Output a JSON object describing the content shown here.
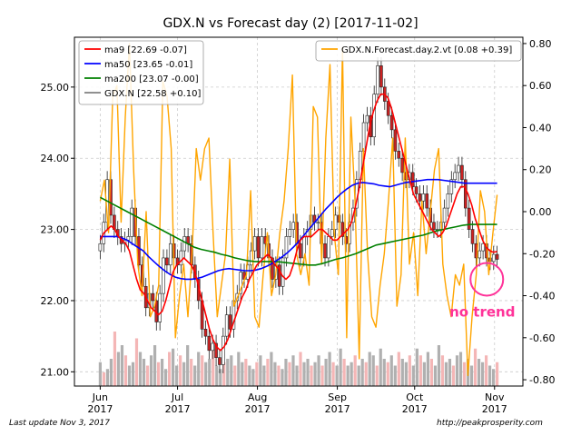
{
  "chart_data": {
    "type": "candlestick",
    "title": "GDX.N vs Forecast day (2)  [2017-11-02]",
    "x_ticks": [
      {
        "date": "2017-06-01",
        "label": "Jun\n2017"
      },
      {
        "date": "2017-07-01",
        "label": "Jul\n2017"
      },
      {
        "date": "2017-08-01",
        "label": "Aug\n2017"
      },
      {
        "date": "2017-09-01",
        "label": "Sep\n2017"
      },
      {
        "date": "2017-10-01",
        "label": "Oct\n2017"
      },
      {
        "date": "2017-11-01",
        "label": "Nov\n2017"
      }
    ],
    "x_range": [
      "2017-05-22",
      "2017-11-12"
    ],
    "left_axis": {
      "range": [
        20.8,
        25.7
      ],
      "ticks": [
        21.0,
        22.0,
        23.0,
        24.0,
        25.0
      ],
      "labels": [
        "21.00",
        "22.00",
        "23.00",
        "24.00",
        "25.00"
      ]
    },
    "right_axis": {
      "range": [
        -0.83,
        0.83
      ],
      "ticks": [
        -0.8,
        -0.6,
        -0.4,
        -0.2,
        0.0,
        0.2,
        0.4,
        0.6,
        0.8
      ],
      "labels": [
        "-0.80",
        "-0.60",
        "-0.40",
        "-0.20",
        "0.00",
        "0.20",
        "0.40",
        "0.60",
        "0.80"
      ]
    },
    "legend_left": [
      {
        "name": "ma9 [22.69 -0.07]",
        "color": "#ff0000"
      },
      {
        "name": "ma50 [23.65 -0.01]",
        "color": "#0000ff"
      },
      {
        "name": "ma200 [23.07 -0.00]",
        "color": "#008000"
      },
      {
        "name": "GDX.N [22.58 +0.10]",
        "color": "#808080"
      }
    ],
    "legend_right": [
      {
        "name": "GDX.N.Forecast.day.2.vt [0.08 +0.39]",
        "color": "#ffa500"
      }
    ],
    "annotation": {
      "text": "no trend",
      "color": "#ff3399"
    },
    "colors": {
      "ma9": "#ff0000",
      "ma50": "#0000ff",
      "ma200": "#008000",
      "forecast": "#ffa500",
      "up_vol": "#b0b0b0",
      "down_vol": "#f4b6b6",
      "down_candle": "#cc2222",
      "up_candle": "#ffffff",
      "grid": "#cccccc",
      "annotation": "#ff3399"
    },
    "price_close": [
      22.8,
      23.1,
      23.7,
      23.2,
      23.0,
      22.9,
      22.8,
      22.85,
      22.9,
      23.3,
      22.9,
      22.5,
      22.2,
      21.9,
      22.1,
      22.0,
      21.7,
      22.1,
      22.6,
      22.5,
      22.8,
      22.6,
      22.5,
      22.7,
      22.9,
      22.8,
      22.5,
      22.3,
      22.0,
      21.6,
      21.5,
      21.3,
      21.4,
      21.2,
      21.1,
      21.5,
      21.8,
      21.6,
      22.0,
      22.1,
      22.4,
      22.3,
      22.5,
      22.7,
      22.9,
      22.6,
      22.9,
      22.8,
      22.6,
      22.3,
      22.5,
      22.2,
      22.6,
      22.9,
      23.0,
      23.1,
      22.8,
      22.6,
      22.9,
      23.0,
      23.2,
      23.1,
      23.1,
      22.8,
      22.6,
      22.9,
      23.0,
      23.2,
      23.1,
      22.9,
      22.8,
      23.1,
      23.3,
      23.7,
      24.1,
      24.5,
      24.6,
      24.3,
      24.9,
      25.3,
      25.0,
      24.8,
      24.6,
      24.4,
      24.1,
      24.0,
      23.8,
      23.7,
      23.8,
      23.6,
      23.5,
      23.4,
      23.5,
      23.3,
      23.1,
      23.0,
      23.0,
      23.1,
      23.3,
      23.5,
      23.7,
      23.8,
      23.9,
      23.7,
      23.3,
      23.0,
      22.8,
      22.6,
      22.7,
      22.8,
      22.6,
      22.55,
      22.65,
      22.58
    ],
    "ma9": [
      22.85,
      22.95,
      23.0,
      23.05,
      23.0,
      22.9,
      22.85,
      22.8,
      22.7,
      22.5,
      22.3,
      22.15,
      22.1,
      22.0,
      21.9,
      21.85,
      21.8,
      21.85,
      22.0,
      22.2,
      22.4,
      22.5,
      22.55,
      22.6,
      22.55,
      22.5,
      22.4,
      22.2,
      22.0,
      21.8,
      21.6,
      21.45,
      21.35,
      21.3,
      21.35,
      21.45,
      21.6,
      21.75,
      21.9,
      22.05,
      22.15,
      22.3,
      22.4,
      22.5,
      22.55,
      22.6,
      22.65,
      22.6,
      22.5,
      22.45,
      22.35,
      22.3,
      22.35,
      22.5,
      22.7,
      22.85,
      22.9,
      22.9,
      22.9,
      22.95,
      23.0,
      23.0,
      22.95,
      22.9,
      22.85,
      22.85,
      22.9,
      22.95,
      23.0,
      23.1,
      23.3,
      23.55,
      23.85,
      24.15,
      24.45,
      24.65,
      24.8,
      24.9,
      24.9,
      24.85,
      24.7,
      24.5,
      24.3,
      24.1,
      23.9,
      23.7,
      23.5,
      23.4,
      23.3,
      23.2,
      23.1,
      23.0,
      22.95,
      22.9,
      22.95,
      23.05,
      23.2,
      23.35,
      23.5,
      23.6,
      23.6,
      23.5,
      23.35,
      23.15,
      23.0,
      22.85,
      22.75,
      22.7,
      22.68,
      22.69
    ],
    "ma50": [
      22.9,
      22.9,
      22.9,
      22.9,
      22.88,
      22.85,
      22.8,
      22.75,
      22.7,
      22.62,
      22.55,
      22.48,
      22.42,
      22.37,
      22.33,
      22.31,
      22.3,
      22.3,
      22.31,
      22.33,
      22.36,
      22.39,
      22.42,
      22.44,
      22.45,
      22.44,
      22.43,
      22.42,
      22.42,
      22.43,
      22.45,
      22.48,
      22.52,
      22.57,
      22.62,
      22.68,
      22.75,
      22.83,
      22.92,
      23.01,
      23.1,
      23.19,
      23.28,
      23.36,
      23.44,
      23.51,
      23.57,
      23.62,
      23.65,
      23.66,
      23.65,
      23.64,
      23.62,
      23.61,
      23.6,
      23.62,
      23.64,
      23.66,
      23.67,
      23.68,
      23.69,
      23.7,
      23.7,
      23.7,
      23.69,
      23.68,
      23.67,
      23.66,
      23.65,
      23.65,
      23.65,
      23.65,
      23.65,
      23.65,
      23.65
    ],
    "ma200": [
      23.45,
      23.4,
      23.35,
      23.3,
      23.25,
      23.2,
      23.15,
      23.1,
      23.05,
      23.0,
      22.95,
      22.9,
      22.85,
      22.8,
      22.75,
      22.72,
      22.7,
      22.68,
      22.65,
      22.63,
      22.6,
      22.58,
      22.56,
      22.55,
      22.55,
      22.55,
      22.55,
      22.54,
      22.53,
      22.52,
      22.51,
      22.5,
      22.5,
      22.52,
      22.55,
      22.58,
      22.6,
      22.63,
      22.66,
      22.7,
      22.74,
      22.78,
      22.8,
      22.82,
      22.84,
      22.86,
      22.88,
      22.9,
      22.92,
      22.95,
      22.98,
      23.0,
      23.02,
      23.04,
      23.06,
      23.07,
      23.07,
      23.07,
      23.07,
      23.07
    ],
    "forecast": [
      0.05,
      0.15,
      -0.1,
      0.55,
      0.6,
      -0.05,
      0.45,
      0.8,
      0.2,
      -0.25,
      -0.4,
      0.0,
      -0.5,
      -0.45,
      -0.35,
      0.62,
      0.55,
      0.3,
      -0.6,
      -0.4,
      -0.25,
      -0.5,
      -0.2,
      0.3,
      0.15,
      0.3,
      0.35,
      -0.1,
      -0.5,
      -0.35,
      -0.2,
      0.25,
      -0.45,
      -0.4,
      -0.35,
      -0.3,
      0.1,
      -0.5,
      -0.55,
      -0.3,
      -0.1,
      -0.4,
      -0.3,
      -0.1,
      0.05,
      0.3,
      0.65,
      -0.2,
      -0.3,
      -0.2,
      -0.35,
      0.5,
      0.45,
      -0.25,
      0.35,
      0.7,
      -0.1,
      -0.3,
      0.78,
      -0.6,
      0.45,
      0.05,
      -0.7,
      0.3,
      -0.2,
      -0.5,
      -0.55,
      -0.35,
      -0.2,
      0.05,
      0.35,
      -0.45,
      -0.3,
      0.35,
      -0.25,
      -0.1,
      -0.4,
      0.05,
      -0.2,
      0.0,
      0.2,
      0.3,
      -0.25,
      -0.4,
      -0.5,
      -0.3,
      -0.35,
      -0.25,
      -0.78,
      -0.5,
      -0.3,
      0.1,
      0.0,
      -0.3,
      -0.1,
      0.08
    ],
    "volume": [
      0.35,
      0.2,
      0.25,
      0.4,
      0.8,
      0.5,
      0.6,
      0.45,
      0.3,
      0.35,
      0.7,
      0.5,
      0.4,
      0.3,
      0.45,
      0.6,
      0.35,
      0.4,
      0.25,
      0.5,
      0.55,
      0.3,
      0.45,
      0.35,
      0.6,
      0.4,
      0.3,
      0.5,
      0.45,
      0.35,
      0.4,
      0.55,
      0.3,
      0.25,
      0.35,
      0.4,
      0.45,
      0.3,
      0.5,
      0.35,
      0.4,
      0.3,
      0.25,
      0.35,
      0.45,
      0.3,
      0.4,
      0.5,
      0.35,
      0.3,
      0.25,
      0.4,
      0.35,
      0.45,
      0.3,
      0.5,
      0.35,
      0.4,
      0.3,
      0.35,
      0.45,
      0.3,
      0.4,
      0.5,
      0.35,
      0.3,
      0.55,
      0.4,
      0.3,
      0.35,
      0.45,
      0.3,
      0.4,
      0.35,
      0.5,
      0.45,
      0.3,
      0.55,
      0.4,
      0.35,
      0.45,
      0.3,
      0.5,
      0.4,
      0.35,
      0.45,
      0.3,
      0.55,
      0.45,
      0.35,
      0.5,
      0.4,
      0.3,
      0.6,
      0.45,
      0.35,
      0.4,
      0.3,
      0.45,
      0.5,
      0.35,
      0.4,
      0.3,
      0.55,
      0.4,
      0.35,
      0.45,
      0.3,
      0.25,
      0.35
    ]
  },
  "footer": {
    "left": "Last update Nov  3, 2017",
    "right": "http://peakprosperity.com"
  }
}
